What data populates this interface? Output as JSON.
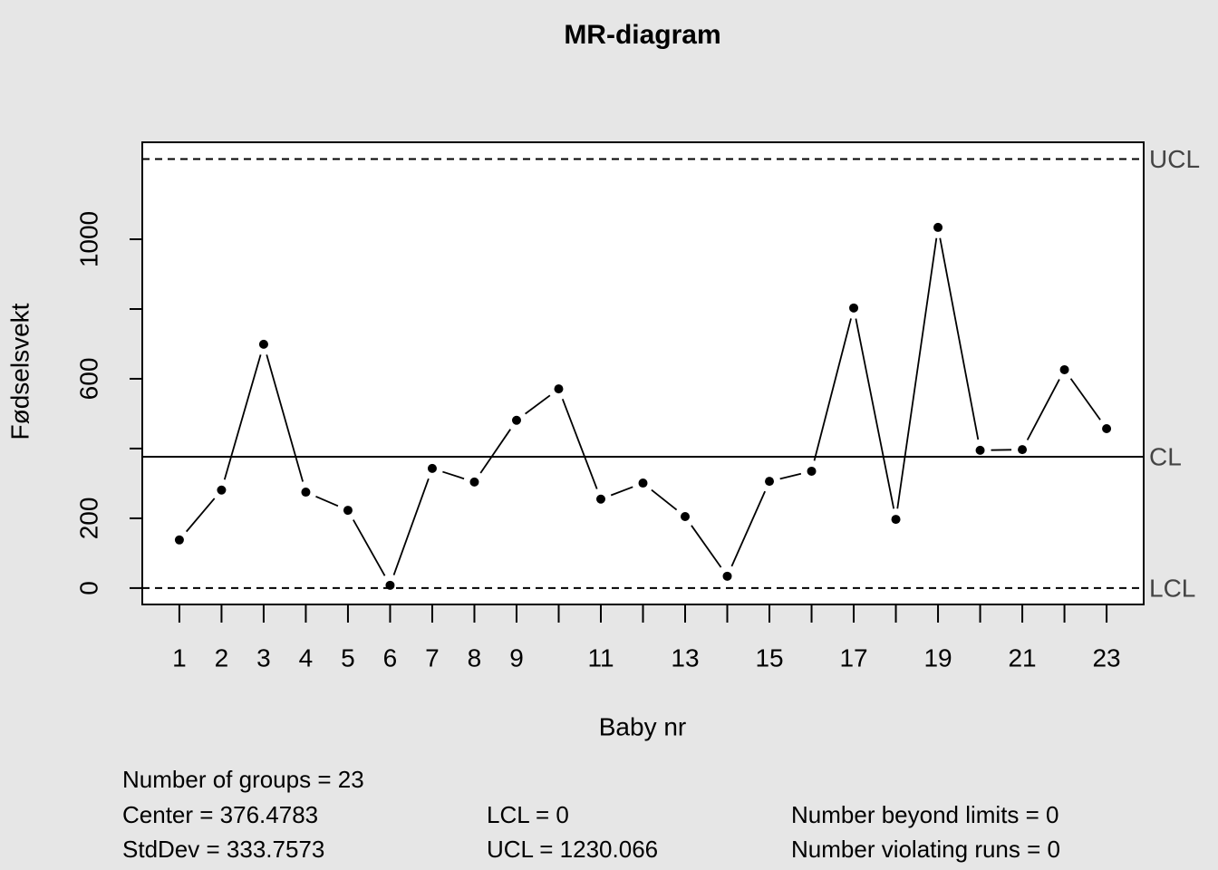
{
  "chart_data": {
    "type": "line",
    "title": "MR-diagram",
    "x_label": "Baby nr",
    "y_label": "Fødselsvekt",
    "categories": [
      "1",
      "2",
      "3",
      "4",
      "5",
      "6",
      "7",
      "8",
      "9",
      null,
      "11",
      null,
      "13",
      null,
      "15",
      null,
      "17",
      null,
      "19",
      null,
      "21",
      null,
      "23"
    ],
    "values": [
      138,
      281,
      699,
      275,
      223,
      8,
      343,
      304,
      481,
      571,
      255,
      301,
      205,
      34,
      306,
      335,
      803,
      197,
      1034,
      395,
      397,
      626,
      457
    ],
    "color": "#000000",
    "ylim": [
      -47,
      1278
    ],
    "yticks": [
      0,
      200,
      {
        "value": 400,
        "label": null
      },
      600,
      {
        "value": 800,
        "label": null
      },
      1000
    ],
    "limits": [
      {
        "label": "UCL",
        "value": 1230.066,
        "linestyle": "dashed"
      },
      {
        "label": "CL",
        "value": 376.4783,
        "linestyle": "solid"
      },
      {
        "label": "LCL",
        "value": 0,
        "linestyle": "dashed"
      }
    ],
    "stats": [
      [
        "Number of groups = 23"
      ],
      [
        "Center = 376.4783",
        "LCL = 0",
        "Number beyond limits = 0"
      ],
      [
        "StdDev = 333.7573",
        "UCL = 1230.066",
        "Number violating runs = 0"
      ]
    ]
  }
}
